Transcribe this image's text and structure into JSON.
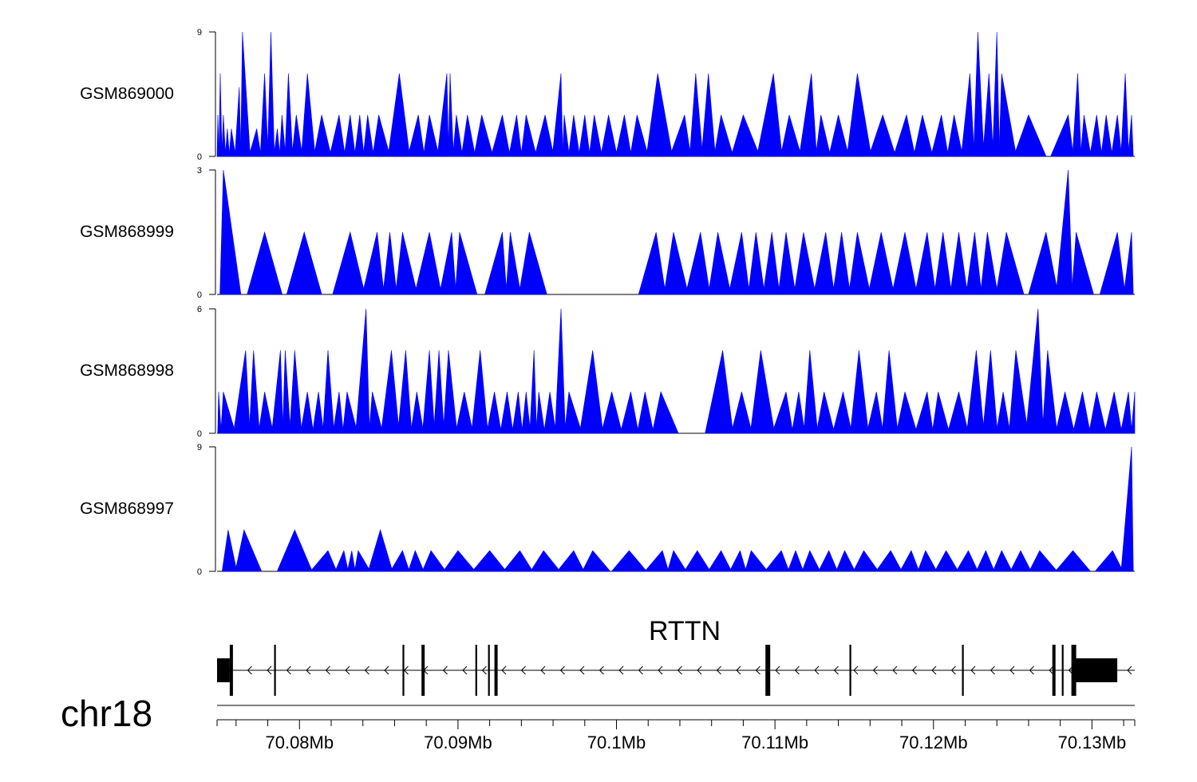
{
  "chart_data": {
    "type": "area",
    "chromosome": "chr18",
    "xlim_bp": [
      70074800,
      70132700
    ],
    "color": "#0000ff",
    "tracks": [
      {
        "name": "GSM869000",
        "ylim": [
          0,
          9
        ],
        "ytick_labels": [
          "0",
          "9"
        ],
        "peaks": [
          [
            70074850,
            3
          ],
          [
            70075000,
            6
          ],
          [
            70075200,
            3
          ],
          [
            70075450,
            2
          ],
          [
            70075700,
            2
          ],
          [
            70076200,
            5
          ],
          [
            70076400,
            9
          ],
          [
            70077300,
            2
          ],
          [
            70077800,
            6
          ],
          [
            70078200,
            9
          ],
          [
            70078600,
            2
          ],
          [
            70078900,
            3
          ],
          [
            70079300,
            6
          ],
          [
            70079800,
            3
          ],
          [
            70080500,
            6
          ],
          [
            70081400,
            3
          ],
          [
            70082500,
            3
          ],
          [
            70083200,
            3
          ],
          [
            70083800,
            3
          ],
          [
            70084300,
            3
          ],
          [
            70085000,
            3
          ],
          [
            70086300,
            6
          ],
          [
            70087500,
            3
          ],
          [
            70088200,
            3
          ],
          [
            70089300,
            6
          ],
          [
            70089500,
            6
          ],
          [
            70089900,
            3
          ],
          [
            70090600,
            3
          ],
          [
            70091500,
            3
          ],
          [
            70092800,
            3
          ],
          [
            70093700,
            3
          ],
          [
            70094300,
            3
          ],
          [
            70095500,
            3
          ],
          [
            70096500,
            6
          ],
          [
            70096700,
            3
          ],
          [
            70097300,
            3
          ],
          [
            70098000,
            3
          ],
          [
            70098600,
            3
          ],
          [
            70099500,
            3
          ],
          [
            70100500,
            3
          ],
          [
            70101300,
            3
          ],
          [
            70102600,
            6
          ],
          [
            70104300,
            3
          ],
          [
            70105000,
            6
          ],
          [
            70105800,
            6
          ],
          [
            70106600,
            3
          ],
          [
            70108000,
            3
          ],
          [
            70109900,
            6
          ],
          [
            70110900,
            3
          ],
          [
            70112300,
            6
          ],
          [
            70112900,
            3
          ],
          [
            70114000,
            3
          ],
          [
            70115200,
            6
          ],
          [
            70116800,
            3
          ],
          [
            70118300,
            3
          ],
          [
            70119300,
            3
          ],
          [
            70120500,
            3
          ],
          [
            70121300,
            3
          ],
          [
            70122300,
            6
          ],
          [
            70122800,
            9
          ],
          [
            70123500,
            6
          ],
          [
            70124000,
            9
          ],
          [
            70124300,
            6
          ],
          [
            70126000,
            3
          ],
          [
            70128500,
            3
          ],
          [
            70129100,
            6
          ],
          [
            70129500,
            3
          ],
          [
            70130300,
            3
          ],
          [
            70130900,
            3
          ],
          [
            70131600,
            3
          ],
          [
            70132100,
            6
          ],
          [
            70132500,
            3
          ]
        ]
      },
      {
        "name": "GSM868999",
        "ylim": [
          0,
          3
        ],
        "ytick_labels": [
          "0",
          "3"
        ],
        "peaks": [
          [
            70075200,
            3
          ],
          [
            70077800,
            1.5
          ],
          [
            70080300,
            1.5
          ],
          [
            70083200,
            1.5
          ],
          [
            70084900,
            1.5
          ],
          [
            70085700,
            1.5
          ],
          [
            70086500,
            1.5
          ],
          [
            70088200,
            1.5
          ],
          [
            70089600,
            1.5
          ],
          [
            70090100,
            1.5
          ],
          [
            70092800,
            1.5
          ],
          [
            70093300,
            1.5
          ],
          [
            70094500,
            1.5
          ],
          [
            70102500,
            1.5
          ],
          [
            70103600,
            1.5
          ],
          [
            70105300,
            1.5
          ],
          [
            70106400,
            1.5
          ],
          [
            70107900,
            1.5
          ],
          [
            70108800,
            1.5
          ],
          [
            70109800,
            1.5
          ],
          [
            70110700,
            1.5
          ],
          [
            70111800,
            1.5
          ],
          [
            70113200,
            1.5
          ],
          [
            70114200,
            1.5
          ],
          [
            70115200,
            1.5
          ],
          [
            70116700,
            1.5
          ],
          [
            70118200,
            1.5
          ],
          [
            70119600,
            1.5
          ],
          [
            70120600,
            1.5
          ],
          [
            70121600,
            1.5
          ],
          [
            70122600,
            1.5
          ],
          [
            70123400,
            1.5
          ],
          [
            70124600,
            1.5
          ],
          [
            70127100,
            1.5
          ],
          [
            70128500,
            3
          ],
          [
            70129000,
            1.5
          ],
          [
            70131600,
            1.5
          ],
          [
            70132500,
            1.5
          ]
        ]
      },
      {
        "name": "GSM868998",
        "ylim": [
          0,
          6
        ],
        "ytick_labels": [
          "0",
          "6"
        ],
        "peaks": [
          [
            70074900,
            2
          ],
          [
            70075200,
            2
          ],
          [
            70076600,
            4
          ],
          [
            70077100,
            4
          ],
          [
            70077800,
            2
          ],
          [
            70078800,
            4
          ],
          [
            70079100,
            4
          ],
          [
            70079700,
            4
          ],
          [
            70080500,
            2
          ],
          [
            70081200,
            2
          ],
          [
            70081800,
            4
          ],
          [
            70082500,
            2
          ],
          [
            70083000,
            2
          ],
          [
            70084200,
            6
          ],
          [
            70084600,
            2
          ],
          [
            70085800,
            4
          ],
          [
            70086700,
            4
          ],
          [
            70087400,
            2
          ],
          [
            70088200,
            4
          ],
          [
            70088800,
            4
          ],
          [
            70089400,
            4
          ],
          [
            70090400,
            2
          ],
          [
            70091400,
            4
          ],
          [
            70092300,
            2
          ],
          [
            70093100,
            2
          ],
          [
            70093800,
            2
          ],
          [
            70094300,
            2
          ],
          [
            70094800,
            4
          ],
          [
            70095100,
            2
          ],
          [
            70095800,
            2
          ],
          [
            70096500,
            6
          ],
          [
            70097000,
            2
          ],
          [
            70098500,
            4
          ],
          [
            70099700,
            2
          ],
          [
            70100900,
            2
          ],
          [
            70101800,
            2
          ],
          [
            70102800,
            2
          ],
          [
            70106700,
            4
          ],
          [
            70107900,
            2
          ],
          [
            70109100,
            4
          ],
          [
            70110700,
            2
          ],
          [
            70111500,
            2
          ],
          [
            70112200,
            4
          ],
          [
            70113100,
            2
          ],
          [
            70114300,
            2
          ],
          [
            70115300,
            4
          ],
          [
            70116400,
            2
          ],
          [
            70117200,
            4
          ],
          [
            70118200,
            2
          ],
          [
            70119600,
            2
          ],
          [
            70120300,
            2
          ],
          [
            70121600,
            2
          ],
          [
            70122700,
            4
          ],
          [
            70123600,
            4
          ],
          [
            70124400,
            2
          ],
          [
            70125200,
            4
          ],
          [
            70126600,
            6
          ],
          [
            70127200,
            4
          ],
          [
            70128300,
            2
          ],
          [
            70129400,
            2
          ],
          [
            70130300,
            2
          ],
          [
            70131400,
            2
          ],
          [
            70132300,
            2
          ],
          [
            70132700,
            2
          ]
        ]
      },
      {
        "name": "GSM868997",
        "ylim": [
          0,
          9
        ],
        "ytick_labels": [
          "0",
          "9"
        ],
        "peaks": [
          [
            70075500,
            3
          ],
          [
            70076500,
            3
          ],
          [
            70079700,
            3
          ],
          [
            70081800,
            1.5
          ],
          [
            70082800,
            1.5
          ],
          [
            70083300,
            1.5
          ],
          [
            70083700,
            1.5
          ],
          [
            70085100,
            3
          ],
          [
            70086500,
            1.5
          ],
          [
            70087300,
            1.5
          ],
          [
            70088300,
            1.5
          ],
          [
            70090000,
            1.5
          ],
          [
            70092000,
            1.5
          ],
          [
            70093900,
            1.5
          ],
          [
            70095400,
            1.5
          ],
          [
            70097300,
            1.5
          ],
          [
            70098500,
            1.5
          ],
          [
            70100800,
            1.5
          ],
          [
            70102900,
            1.5
          ],
          [
            70103600,
            1.5
          ],
          [
            70105100,
            1.5
          ],
          [
            70106600,
            1.5
          ],
          [
            70107800,
            1.5
          ],
          [
            70108500,
            1.5
          ],
          [
            70110400,
            1.5
          ],
          [
            70111300,
            1.5
          ],
          [
            70112200,
            1.5
          ],
          [
            70113400,
            1.5
          ],
          [
            70114400,
            1.5
          ],
          [
            70115600,
            1.5
          ],
          [
            70117300,
            1.5
          ],
          [
            70118600,
            1.5
          ],
          [
            70119500,
            1.5
          ],
          [
            70120800,
            1.5
          ],
          [
            70122200,
            1.5
          ],
          [
            70123300,
            1.5
          ],
          [
            70124300,
            1.5
          ],
          [
            70125500,
            1.5
          ],
          [
            70126700,
            1.5
          ],
          [
            70128800,
            1.5
          ],
          [
            70131300,
            1.5
          ],
          [
            70132500,
            9
          ]
        ]
      }
    ],
    "gene": {
      "name": "RTTN",
      "strand": "-",
      "start": 70074800,
      "end": 70131600,
      "exons": [
        [
          70074800,
          70075600,
          "utr"
        ],
        [
          70075600,
          70075800,
          "cds"
        ],
        [
          70078400,
          70078500,
          "cds"
        ],
        [
          70086500,
          70086600,
          "cds"
        ],
        [
          70087700,
          70087900,
          "cds"
        ],
        [
          70091100,
          70091200,
          "cds"
        ],
        [
          70091900,
          70092000,
          "cds"
        ],
        [
          70092300,
          70092500,
          "cds"
        ],
        [
          70109400,
          70109700,
          "cds"
        ],
        [
          70114700,
          70114800,
          "cds"
        ],
        [
          70121800,
          70121900,
          "cds"
        ],
        [
          70127500,
          70127700,
          "cds"
        ],
        [
          70128100,
          70128200,
          "cds"
        ],
        [
          70128700,
          70129000,
          "cds"
        ],
        [
          70129000,
          70131600,
          "utr"
        ]
      ]
    },
    "axis": {
      "ticks": [
        70080000,
        70090000,
        70100000,
        70110000,
        70120000,
        70130000
      ],
      "tick_labels": [
        "70.08Mb",
        "70.09Mb",
        "70.1Mb",
        "70.11Mb",
        "70.12Mb",
        "70.13Mb"
      ]
    }
  }
}
